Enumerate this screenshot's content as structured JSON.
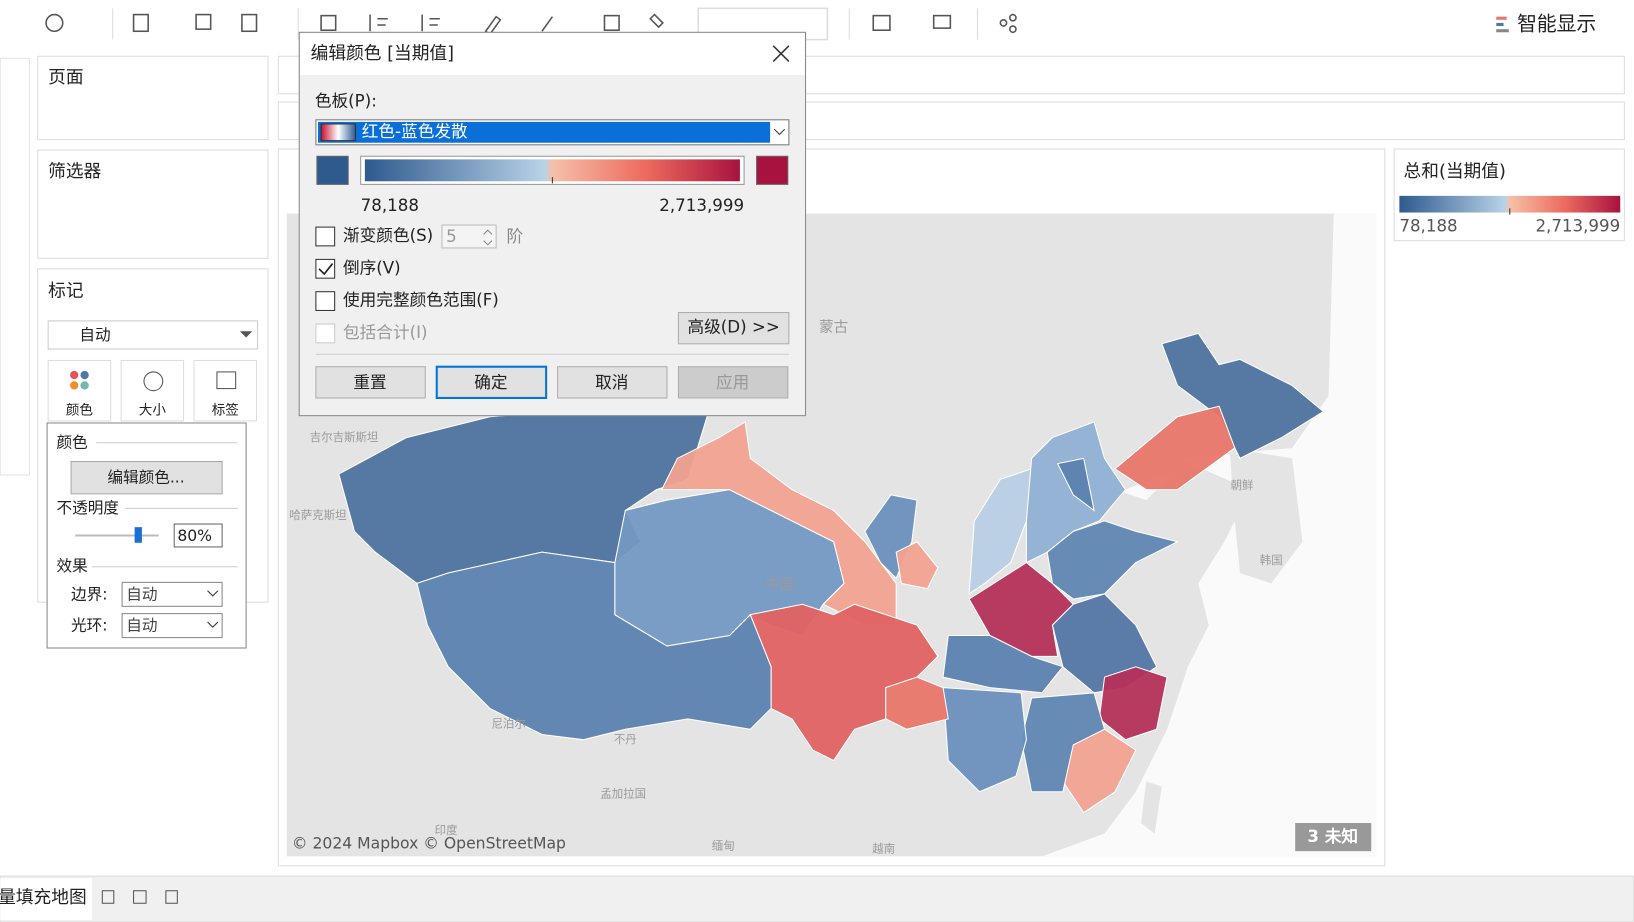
{
  "toolbar": {
    "smart_show": "智能显示"
  },
  "shelves": {
    "pages": "页面",
    "filters": "筛选器",
    "marks": "标记",
    "mark_type": "自动",
    "buttons": [
      "颜色",
      "大小",
      "标签"
    ]
  },
  "color_popup": {
    "title": "颜色",
    "edit_button": "编辑颜色...",
    "opacity_label": "不透明度",
    "opacity_value": "80%",
    "effects_label": "效果",
    "border_label": "边界:",
    "border_value": "自动",
    "halo_label": "光环:",
    "halo_value": "自动"
  },
  "dialog": {
    "title": "编辑颜色 [当期值]",
    "palette_label": "色板(P):",
    "palette_value": "红色-蓝色发散",
    "range_min": "78,188",
    "range_max": "2,713,999",
    "checkboxes": [
      {
        "label": "渐变颜色(S)",
        "checked": false,
        "disabled": false
      },
      {
        "label": "倒序(V)",
        "checked": true,
        "disabled": false
      },
      {
        "label": "使用完整颜色范围(F)",
        "checked": false,
        "disabled": false
      },
      {
        "label": "包括合计(I)",
        "checked": false,
        "disabled": true
      }
    ],
    "steps_value": "5",
    "steps_unit": "阶",
    "advanced_button": "高级(D) >>",
    "buttons": [
      {
        "label": "重置",
        "disabled": false,
        "default": false
      },
      {
        "label": "确定",
        "disabled": false,
        "default": true
      },
      {
        "label": "取消",
        "disabled": false,
        "default": false
      },
      {
        "label": "应用",
        "disabled": true,
        "default": false
      }
    ]
  },
  "legend": {
    "title": "总和(当期值)",
    "min": "78,188",
    "max": "2,713,999"
  },
  "map": {
    "attribution": "© 2024 Mapbox © OpenStreetMap",
    "unknown": "3 未知",
    "labels": [
      "蒙古",
      "中国",
      "朝鲜",
      "韩国",
      "尼泊尔",
      "不丹",
      "孟加拉国",
      "印度",
      "缅甸",
      "越南",
      "哈萨克斯坦",
      "吉尔吉斯斯坦"
    ]
  },
  "sheet_tab": "量填充地图"
}
